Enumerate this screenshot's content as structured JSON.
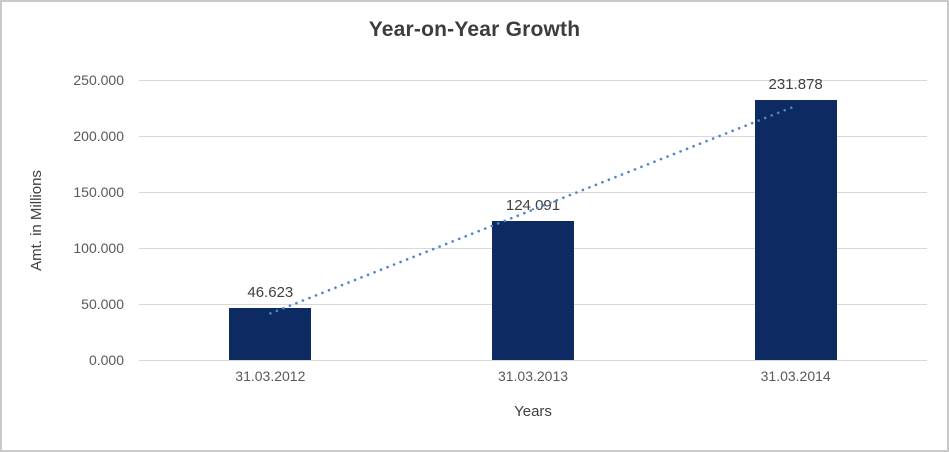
{
  "chart_data": {
    "type": "bar",
    "title": "Year-on-Year Growth",
    "xlabel": "Years",
    "ylabel": "Amt. in Millions",
    "categories": [
      "31.03.2012",
      "31.03.2013",
      "31.03.2014"
    ],
    "values": [
      46.623,
      124.091,
      231.878
    ],
    "value_labels": [
      "46.623",
      "124.091",
      "231.878"
    ],
    "ylim": [
      0,
      250
    ],
    "ytick_values": [
      0,
      50,
      100,
      150,
      200,
      250
    ],
    "ytick_labels": [
      "0.000",
      "50.000",
      "100.000",
      "150.000",
      "200.000",
      "250.000"
    ],
    "grid": "horizontal",
    "legend": "none",
    "trendline": {
      "type": "linear",
      "style": "dotted",
      "endpoint_values": [
        41.57,
        226.82
      ]
    },
    "colors": {
      "bar": "#0d2a63",
      "trendline": "#4e84c8",
      "gridline": "#d9d9d9",
      "title_text": "#3d3d3d",
      "tick_text": "#595959",
      "label_text": "#404040",
      "border": "#c9c9c9",
      "background": "#ffffff"
    }
  }
}
